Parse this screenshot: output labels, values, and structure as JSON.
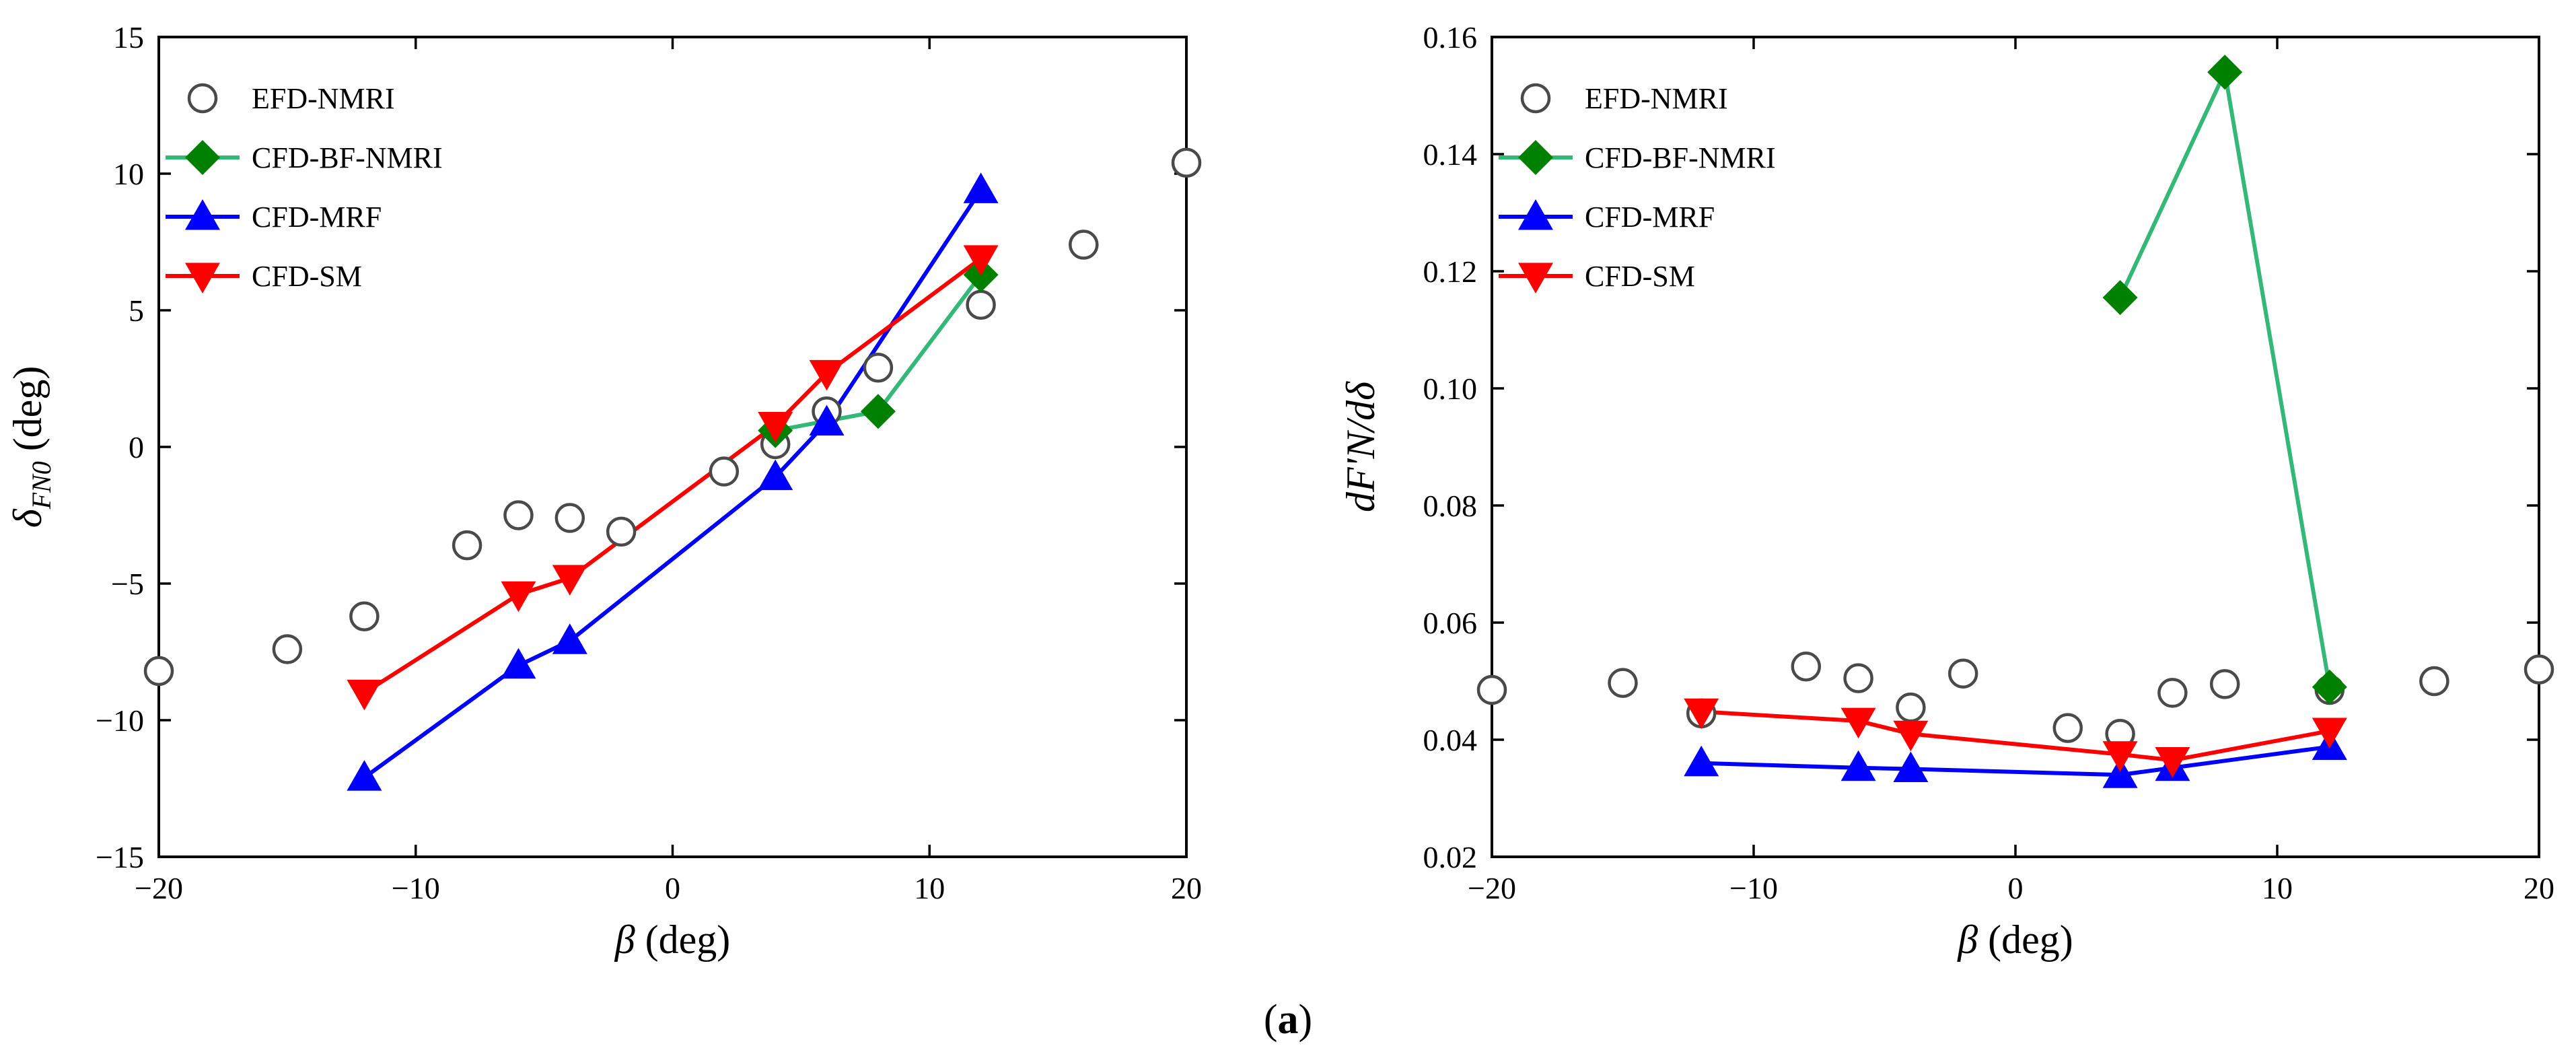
{
  "caption": {
    "open": "(",
    "letter": "a",
    "close": ")"
  },
  "colors": {
    "efd": "#4a4a4a",
    "bf": "#008000",
    "bf_line": "#33b877",
    "mrf": "#0000ff",
    "sm": "#ff0000"
  },
  "chart_data": [
    {
      "type": "line",
      "title": "",
      "xlabel": {
        "symbol": "β",
        "unit": "(deg)"
      },
      "ylabel": {
        "symbol": "δ",
        "sub": "FN0",
        "unit": "(deg)"
      },
      "xlim": [
        -20,
        20
      ],
      "ylim": [
        -15,
        15
      ],
      "xticks": [
        -20,
        -10,
        0,
        10,
        20
      ],
      "xtick_labels": [
        "−20",
        "−10",
        "0",
        "10",
        "20"
      ],
      "yticks": [
        -15,
        -10,
        -5,
        0,
        5,
        10,
        15
      ],
      "ytick_labels": [
        "−15",
        "−10",
        "−5",
        "0",
        "5",
        "10",
        "15"
      ],
      "legend_position": "top-left",
      "series": [
        {
          "name": "EFD-NMRI",
          "marker": "circle",
          "line": false,
          "x": [
            -20,
            -15,
            -12,
            -8,
            -6,
            -4,
            -2,
            2,
            4,
            6,
            8,
            12,
            16,
            20
          ],
          "y": [
            -8.2,
            -7.4,
            -6.2,
            -3.6,
            -2.5,
            -2.6,
            -3.1,
            -0.9,
            0.1,
            1.3,
            2.9,
            5.2,
            7.4,
            10.4
          ]
        },
        {
          "name": "CFD-BF-NMRI",
          "marker": "diamond",
          "line": true,
          "x": [
            4,
            8,
            12
          ],
          "y": [
            0.6,
            1.3,
            6.3
          ]
        },
        {
          "name": "CFD-MRF",
          "marker": "triangle-up",
          "line": true,
          "x": [
            -12,
            -6,
            -4,
            4,
            6,
            12
          ],
          "y": [
            -12.1,
            -8.0,
            -7.1,
            -1.1,
            0.9,
            9.4
          ]
        },
        {
          "name": "CFD-SM",
          "marker": "triangle-down",
          "line": true,
          "x": [
            -12,
            -6,
            -4,
            4,
            6,
            12
          ],
          "y": [
            -9.0,
            -5.4,
            -4.8,
            0.8,
            2.7,
            6.9
          ]
        }
      ]
    },
    {
      "type": "line",
      "title": "",
      "xlabel": {
        "symbol": "β",
        "unit": "(deg)"
      },
      "ylabel": {
        "text": "dF'N/dδ"
      },
      "xlim": [
        -20,
        20
      ],
      "ylim": [
        0.02,
        0.16
      ],
      "xticks": [
        -20,
        -10,
        0,
        10,
        20
      ],
      "xtick_labels": [
        "−20",
        "−10",
        "0",
        "10",
        "20"
      ],
      "yticks": [
        0.02,
        0.04,
        0.06,
        0.08,
        0.1,
        0.12,
        0.14,
        0.16
      ],
      "ytick_labels": [
        "0.02",
        "0.04",
        "0.06",
        "0.08",
        "0.10",
        "0.12",
        "0.14",
        "0.16"
      ],
      "legend_position": "top-left",
      "series": [
        {
          "name": "EFD-NMRI",
          "marker": "circle",
          "line": false,
          "x": [
            -20,
            -15,
            -12,
            -8,
            -6,
            -4,
            -2,
            2,
            4,
            6,
            8,
            12,
            16,
            20
          ],
          "y": [
            0.0485,
            0.0497,
            0.0445,
            0.0525,
            0.0505,
            0.0455,
            0.0513,
            0.042,
            0.041,
            0.048,
            0.0495,
            0.0485,
            0.05,
            0.052
          ]
        },
        {
          "name": "CFD-BF-NMRI",
          "marker": "diamond",
          "line": true,
          "x": [
            4,
            8,
            12
          ],
          "y": [
            0.1155,
            0.154,
            0.049
          ]
        },
        {
          "name": "CFD-MRF",
          "marker": "triangle-up",
          "line": true,
          "x": [
            -12,
            -6,
            -4,
            4,
            6,
            12
          ],
          "y": [
            0.036,
            0.0352,
            0.035,
            0.034,
            0.0352,
            0.0388
          ]
        },
        {
          "name": "CFD-SM",
          "marker": "triangle-down",
          "line": true,
          "x": [
            -12,
            -6,
            -4,
            4,
            6,
            12
          ],
          "y": [
            0.0448,
            0.0432,
            0.041,
            0.0375,
            0.0365,
            0.0415
          ]
        }
      ]
    }
  ]
}
